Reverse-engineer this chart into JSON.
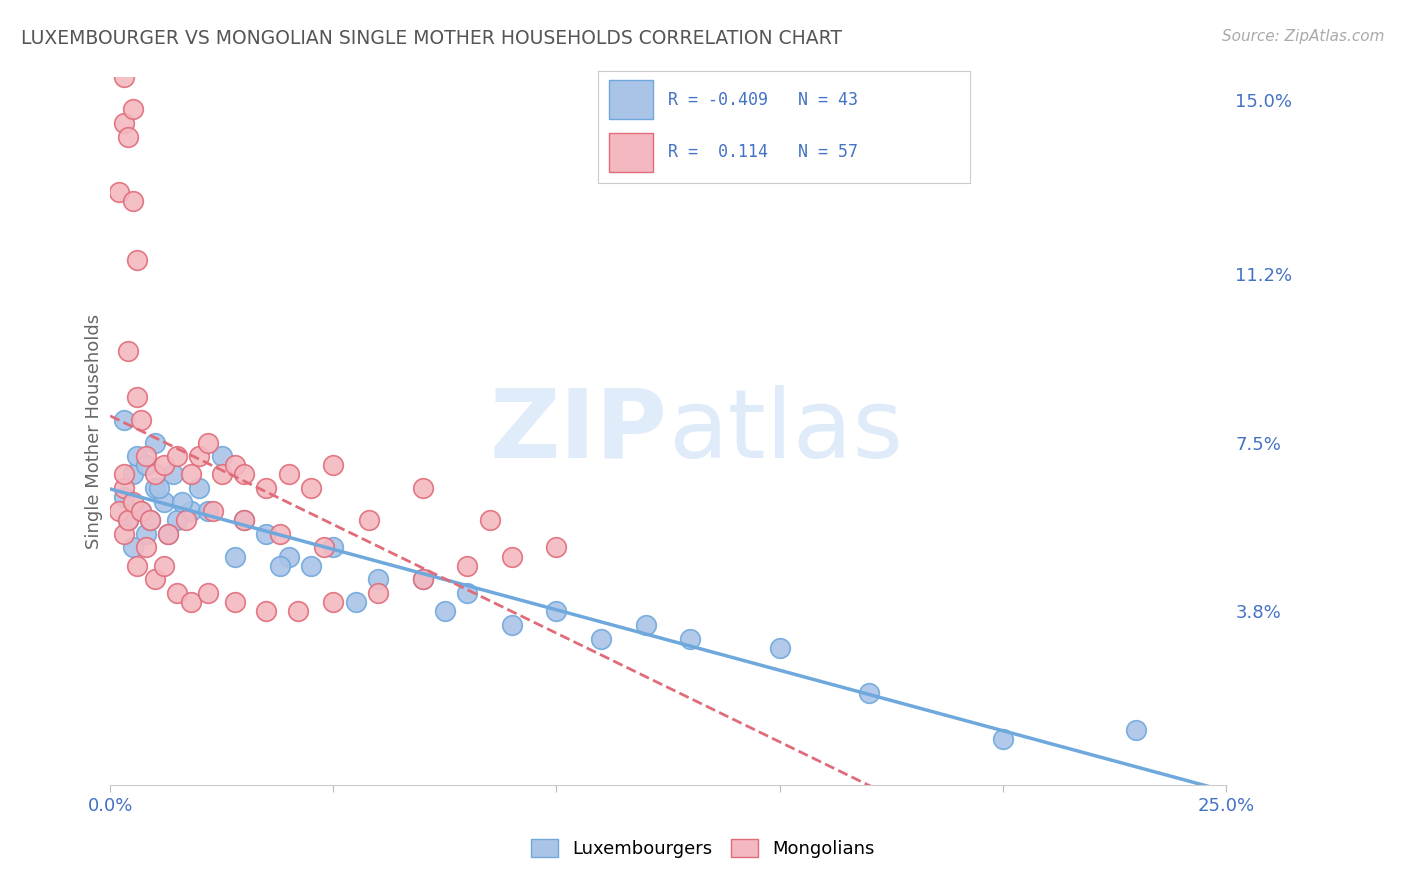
{
  "title": "LUXEMBOURGER VS MONGOLIAN SINGLE MOTHER HOUSEHOLDS CORRELATION CHART",
  "source": "Source: ZipAtlas.com",
  "ylabel": "Single Mother Households",
  "xlim": [
    0,
    0.25
  ],
  "ylim": [
    0,
    0.155
  ],
  "lux_color": "#6fa8dc",
  "lux_fill": "#aac4e8",
  "mon_color": "#e06c7a",
  "mon_fill": "#f4b8c0",
  "lux_R": -0.409,
  "lux_N": 43,
  "mon_R": 0.114,
  "mon_N": 57,
  "watermark_zip": "ZIP",
  "watermark_atlas": "atlas",
  "bg_color": "#ffffff",
  "grid_color": "#dddddd",
  "right_yticks": [
    0.038,
    0.075,
    0.112,
    0.15
  ],
  "right_yticklabels": [
    "3.8%",
    "7.5%",
    "11.2%",
    "15.0%"
  ],
  "text_color": "#4472c4",
  "title_color": "#555555",
  "axis_label_color": "#666666",
  "lux_scatter_x": [
    0.003,
    0.005,
    0.004,
    0.006,
    0.008,
    0.01,
    0.012,
    0.015,
    0.018,
    0.01,
    0.008,
    0.014,
    0.02,
    0.025,
    0.03,
    0.035,
    0.04,
    0.045,
    0.05,
    0.06,
    0.07,
    0.08,
    0.1,
    0.12,
    0.13,
    0.15,
    0.005,
    0.007,
    0.009,
    0.011,
    0.016,
    0.022,
    0.028,
    0.038,
    0.055,
    0.075,
    0.09,
    0.11,
    0.2,
    0.23,
    0.003,
    0.013,
    0.17
  ],
  "lux_scatter_y": [
    0.063,
    0.068,
    0.058,
    0.072,
    0.07,
    0.065,
    0.062,
    0.058,
    0.06,
    0.075,
    0.055,
    0.068,
    0.065,
    0.072,
    0.058,
    0.055,
    0.05,
    0.048,
    0.052,
    0.045,
    0.045,
    0.042,
    0.038,
    0.035,
    0.032,
    0.03,
    0.052,
    0.06,
    0.058,
    0.065,
    0.062,
    0.06,
    0.05,
    0.048,
    0.04,
    0.038,
    0.035,
    0.032,
    0.01,
    0.012,
    0.08,
    0.055,
    0.02
  ],
  "mon_scatter_x": [
    0.002,
    0.003,
    0.004,
    0.005,
    0.006,
    0.003,
    0.005,
    0.007,
    0.008,
    0.006,
    0.004,
    0.01,
    0.012,
    0.015,
    0.018,
    0.02,
    0.022,
    0.025,
    0.028,
    0.03,
    0.035,
    0.04,
    0.045,
    0.05,
    0.002,
    0.003,
    0.004,
    0.006,
    0.008,
    0.01,
    0.012,
    0.015,
    0.018,
    0.022,
    0.028,
    0.035,
    0.042,
    0.05,
    0.06,
    0.07,
    0.08,
    0.09,
    0.1,
    0.003,
    0.005,
    0.007,
    0.009,
    0.013,
    0.017,
    0.023,
    0.03,
    0.038,
    0.048,
    0.058,
    0.07,
    0.085,
    0.003
  ],
  "mon_scatter_y": [
    0.13,
    0.145,
    0.142,
    0.128,
    0.115,
    0.155,
    0.148,
    0.08,
    0.072,
    0.085,
    0.095,
    0.068,
    0.07,
    0.072,
    0.068,
    0.072,
    0.075,
    0.068,
    0.07,
    0.068,
    0.065,
    0.068,
    0.065,
    0.07,
    0.06,
    0.055,
    0.058,
    0.048,
    0.052,
    0.045,
    0.048,
    0.042,
    0.04,
    0.042,
    0.04,
    0.038,
    0.038,
    0.04,
    0.042,
    0.045,
    0.048,
    0.05,
    0.052,
    0.065,
    0.062,
    0.06,
    0.058,
    0.055,
    0.058,
    0.06,
    0.058,
    0.055,
    0.052,
    0.058,
    0.065,
    0.058,
    0.068
  ]
}
